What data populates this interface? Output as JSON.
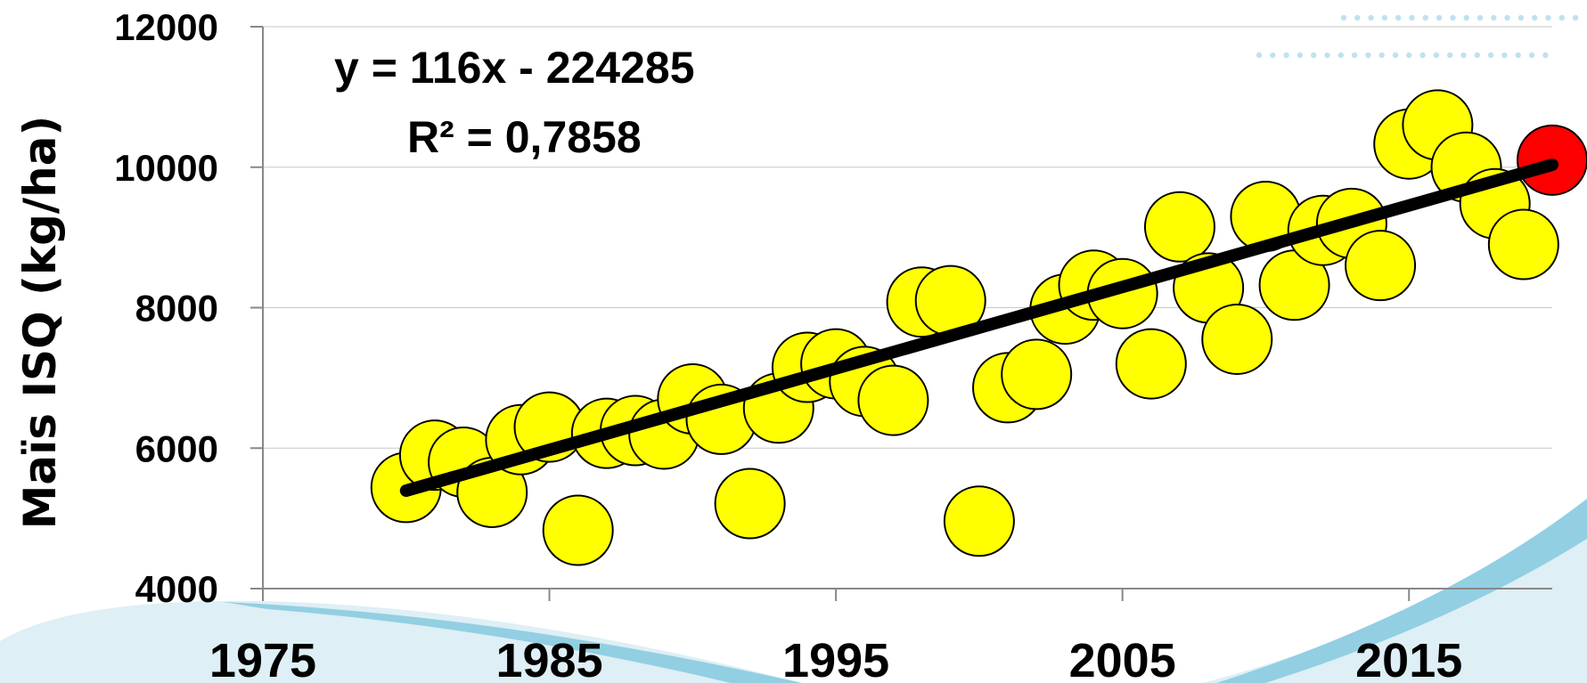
{
  "chart_data": {
    "type": "scatter",
    "title": "",
    "xlabel": "",
    "ylabel": "Maïs ISQ (kg/ha)",
    "xlim": [
      1975,
      2020
    ],
    "ylim": [
      4000,
      12000
    ],
    "x_ticks": [
      "1975",
      "1985",
      "1995",
      "2005",
      "2015"
    ],
    "y_ticks": [
      "4000",
      "6000",
      "8000",
      "10000",
      "12000"
    ],
    "grid": "horizontal",
    "legend": "none",
    "trendline": {
      "equation": "y = 116x - 224285",
      "r2_label": "R² = 0,7858",
      "slope": 116,
      "intercept": -224285,
      "x_range": [
        1980,
        2020
      ],
      "color": "#000000"
    },
    "series": [
      {
        "x": [
          1980,
          1981,
          1982,
          1983,
          1984,
          1985,
          1986,
          1987,
          1988,
          1989,
          1990,
          1991,
          1992,
          1993,
          1994,
          1995,
          1996,
          1997,
          1998,
          1999,
          2000,
          2001,
          2002,
          2003,
          2004,
          2005,
          2006,
          2007,
          2008,
          2009,
          2010,
          2011,
          2012,
          2013,
          2014,
          2015,
          2016,
          2017,
          2018,
          2019,
          2020
        ],
        "y": [
          5440,
          5900,
          5800,
          5370,
          6120,
          6300,
          4830,
          6210,
          6250,
          6200,
          6700,
          6410,
          5210,
          6570,
          7150,
          7200,
          6950,
          6680,
          8080,
          8100,
          4960,
          6860,
          7050,
          7980,
          8320,
          8200,
          7200,
          9150,
          8280,
          7550,
          9300,
          8320,
          9100,
          9200,
          8600,
          10330,
          10600,
          10000,
          9480,
          8900,
          10100
        ],
        "colors": [
          "#ffff00",
          "#ffff00",
          "#ffff00",
          "#ffff00",
          "#ffff00",
          "#ffff00",
          "#ffff00",
          "#ffff00",
          "#ffff00",
          "#ffff00",
          "#ffff00",
          "#ffff00",
          "#ffff00",
          "#ffff00",
          "#ffff00",
          "#ffff00",
          "#ffff00",
          "#ffff00",
          "#ffff00",
          "#ffff00",
          "#ffff00",
          "#ffff00",
          "#ffff00",
          "#ffff00",
          "#ffff00",
          "#ffff00",
          "#ffff00",
          "#ffff00",
          "#ffff00",
          "#ffff00",
          "#ffff00",
          "#ffff00",
          "#ffff00",
          "#ffff00",
          "#ffff00",
          "#ffff00",
          "#ffff00",
          "#ffff00",
          "#ffff00",
          "#ffff00",
          "#ff0000"
        ]
      }
    ]
  },
  "colors": {
    "point_fill": "#ffff00",
    "highlight_fill": "#ff0000",
    "point_stroke": "#000000",
    "trendline": "#000000",
    "grid": "#c8c8c8",
    "axis": "#888888",
    "dots": "#bfe2ef",
    "wave_light": "#deeff5",
    "wave_mid": "#92cfe3",
    "wave_dark": "#5bb5d8"
  }
}
